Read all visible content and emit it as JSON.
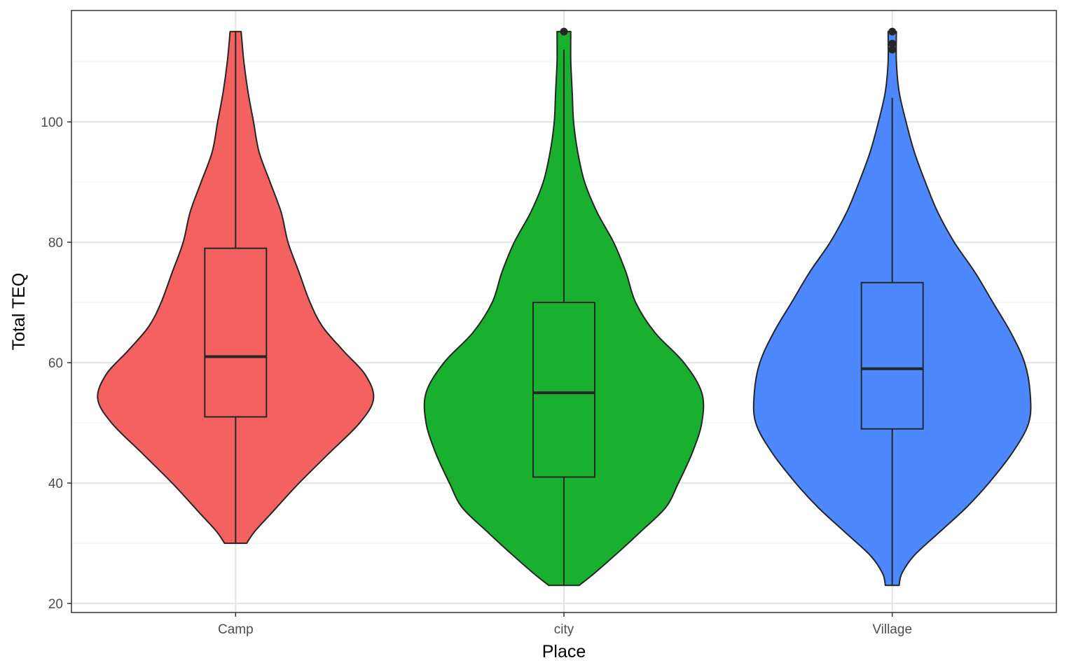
{
  "chart_data": {
    "type": "violin",
    "xlabel": "Place",
    "ylabel": "Total TEQ",
    "categories": [
      "Camp",
      "city",
      "Village"
    ],
    "ylim": [
      18.5,
      118.5
    ],
    "y_ticks": [
      20,
      40,
      60,
      80,
      100
    ],
    "grid": true,
    "legend": "none",
    "colors": {
      "Camp": "#F36260",
      "city": "#19B02F",
      "Village": "#4D88FE",
      "outline": "#262626",
      "grid_major": "#e3e3e3",
      "grid_minor": "#efefef",
      "panel_border": "#333333"
    },
    "series": [
      {
        "category": "Camp",
        "box": {
          "min": 30,
          "q1": 51,
          "median": 61,
          "q3": 79,
          "max": 115
        },
        "outliers": [],
        "density": [
          {
            "y": 30,
            "w": 0.08
          },
          {
            "y": 32,
            "w": 0.14
          },
          {
            "y": 35,
            "w": 0.26
          },
          {
            "y": 40,
            "w": 0.46
          },
          {
            "y": 45,
            "w": 0.68
          },
          {
            "y": 50,
            "w": 0.9
          },
          {
            "y": 54,
            "w": 1.0
          },
          {
            "y": 58,
            "w": 0.94
          },
          {
            "y": 62,
            "w": 0.78
          },
          {
            "y": 66,
            "w": 0.63
          },
          {
            "y": 70,
            "w": 0.54
          },
          {
            "y": 75,
            "w": 0.46
          },
          {
            "y": 80,
            "w": 0.38
          },
          {
            "y": 85,
            "w": 0.33
          },
          {
            "y": 90,
            "w": 0.25
          },
          {
            "y": 95,
            "w": 0.17
          },
          {
            "y": 100,
            "w": 0.13
          },
          {
            "y": 105,
            "w": 0.09
          },
          {
            "y": 110,
            "w": 0.06
          },
          {
            "y": 115,
            "w": 0.04
          }
        ]
      },
      {
        "category": "city",
        "box": {
          "min": 23,
          "q1": 41,
          "median": 55,
          "q3": 70,
          "max": 112
        },
        "outliers": [
          115
        ],
        "density": [
          {
            "y": 23,
            "w": 0.11
          },
          {
            "y": 25,
            "w": 0.22
          },
          {
            "y": 28,
            "w": 0.37
          },
          {
            "y": 32,
            "w": 0.56
          },
          {
            "y": 36,
            "w": 0.74
          },
          {
            "y": 40,
            "w": 0.83
          },
          {
            "y": 45,
            "w": 0.93
          },
          {
            "y": 50,
            "w": 1.0
          },
          {
            "y": 55,
            "w": 1.0
          },
          {
            "y": 60,
            "w": 0.87
          },
          {
            "y": 65,
            "w": 0.66
          },
          {
            "y": 70,
            "w": 0.52
          },
          {
            "y": 75,
            "w": 0.45
          },
          {
            "y": 80,
            "w": 0.36
          },
          {
            "y": 85,
            "w": 0.24
          },
          {
            "y": 90,
            "w": 0.15
          },
          {
            "y": 95,
            "w": 0.1
          },
          {
            "y": 100,
            "w": 0.07
          },
          {
            "y": 105,
            "w": 0.06
          },
          {
            "y": 110,
            "w": 0.05
          },
          {
            "y": 115,
            "w": 0.05
          }
        ]
      },
      {
        "category": "Village",
        "box": {
          "min": 23,
          "q1": 49,
          "median": 59,
          "q3": 73.3,
          "max": 104
        },
        "outliers": [
          112,
          113,
          115
        ],
        "density": [
          {
            "y": 23,
            "w": 0.05
          },
          {
            "y": 25,
            "w": 0.07
          },
          {
            "y": 28,
            "w": 0.16
          },
          {
            "y": 32,
            "w": 0.35
          },
          {
            "y": 36,
            "w": 0.54
          },
          {
            "y": 40,
            "w": 0.7
          },
          {
            "y": 45,
            "w": 0.87
          },
          {
            "y": 50,
            "w": 0.99
          },
          {
            "y": 55,
            "w": 1.0
          },
          {
            "y": 60,
            "w": 0.96
          },
          {
            "y": 65,
            "w": 0.86
          },
          {
            "y": 70,
            "w": 0.73
          },
          {
            "y": 75,
            "w": 0.6
          },
          {
            "y": 80,
            "w": 0.45
          },
          {
            "y": 85,
            "w": 0.33
          },
          {
            "y": 90,
            "w": 0.24
          },
          {
            "y": 95,
            "w": 0.16
          },
          {
            "y": 100,
            "w": 0.1
          },
          {
            "y": 105,
            "w": 0.05
          },
          {
            "y": 110,
            "w": 0.03
          },
          {
            "y": 115,
            "w": 0.03
          }
        ]
      }
    ]
  }
}
